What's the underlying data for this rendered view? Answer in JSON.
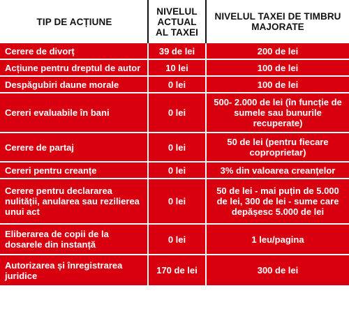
{
  "header": {
    "col1": "TIP DE ACȚIUNE",
    "col2": "NIVELUL ACTUAL AL TAXEI",
    "col3": "NIVELUL TAXEI DE TIMBRU MAJORATE"
  },
  "rows": [
    {
      "type": "Cerere de divorț",
      "current": "39 de lei",
      "new": "200 de lei"
    },
    {
      "type": "Acțiune pentru dreptul de autor",
      "current": "10 lei",
      "new": "100 de lei"
    },
    {
      "type": "Despăgubiri daune morale",
      "current": "0 lei",
      "new": "100 de lei"
    },
    {
      "type": "Cereri evaluabile în bani",
      "current": "0 lei",
      "new": "500- 2.000 de lei (în funcție de sumele sau bunurile recuperate)"
    },
    {
      "type": "Cerere de partaj",
      "current": "0 lei",
      "new": "50 de lei (pentru fiecare coproprietar)"
    },
    {
      "type": "Cereri pentru creanțe",
      "current": "0 lei",
      "new": "3% din valoarea creanțelor"
    },
    {
      "type": "Cerere pentru declararea nulității, anularea sau rezilierea unui act",
      "current": "0 lei",
      "new": "50 de lei - mai puțin de 5.000 de lei, 300 de lei - sume care depășesc 5.000 de lei"
    },
    {
      "type": "Eliberarea de copii de la dosarele din instanță",
      "current": "0 lei",
      "new": "1 leu/pagina"
    },
    {
      "type": "Autorizarea și înregistrarea juridice",
      "current": "170 de lei",
      "new": "300 de lei"
    }
  ],
  "colors": {
    "row_background": "#d8000f",
    "row_text": "#ffffff",
    "header_text": "#111111"
  }
}
